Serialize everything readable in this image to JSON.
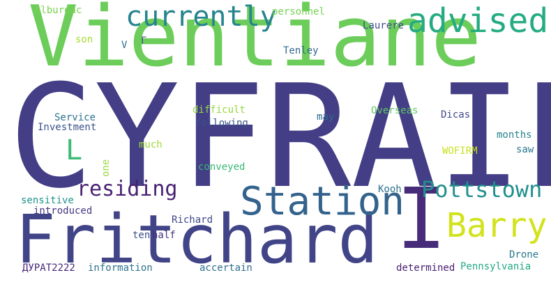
{
  "words": [
    {
      "text": "CYFRAIL",
      "color": "#433e85"
    },
    {
      "text": "Vientiane",
      "color": "#6ccd5a"
    },
    {
      "text": "Fritchard",
      "color": "#414487"
    },
    {
      "text": "I",
      "color": "#472c7a"
    },
    {
      "text": "advised",
      "color": "#25ab82"
    },
    {
      "text": "currently",
      "color": "#25848e"
    },
    {
      "text": "Station",
      "color": "#33638d"
    },
    {
      "text": "Barry",
      "color": "#d2e21b"
    },
    {
      "text": "Pottstown",
      "color": "#218f8d"
    },
    {
      "text": "residing",
      "color": "#482173"
    },
    {
      "text": "L",
      "color": "#3cbb75"
    },
    {
      "text": "Alburdac",
      "color": "#7ad151"
    },
    {
      "text": "personnel",
      "color": "#75d054"
    },
    {
      "text": "son",
      "color": "#a8db34"
    },
    {
      "text": "V",
      "color": "#2e6e8e"
    },
    {
      "text": "Г",
      "color": "#3b528b"
    },
    {
      "text": "Laurere",
      "color": "#3e4c8a"
    },
    {
      "text": "Tenley",
      "color": "#31688e"
    },
    {
      "text": "Service",
      "color": "#2c728e"
    },
    {
      "text": "Investment",
      "color": "#3a538b"
    },
    {
      "text": "difficult",
      "color": "#95d840"
    },
    {
      "text": "following",
      "color": "#3b528b"
    },
    {
      "text": "may",
      "color": "#2f6c8e"
    },
    {
      "text": "Overseas",
      "color": "#5ec962"
    },
    {
      "text": "Dicas",
      "color": "#3e4a89"
    },
    {
      "text": "months",
      "color": "#26828e"
    },
    {
      "text": "much",
      "color": "#a0da39"
    },
    {
      "text": "WOFIRM",
      "color": "#cae11f"
    },
    {
      "text": "saw",
      "color": "#2a768e"
    },
    {
      "text": "one",
      "color": "#9dd93b"
    },
    {
      "text": "conveyed",
      "color": "#38b977"
    },
    {
      "text": "Kooh",
      "color": "#2d708e"
    },
    {
      "text": "sensitive",
      "color": "#20928c"
    },
    {
      "text": "introduced",
      "color": "#453781"
    },
    {
      "text": "Richard",
      "color": "#3f4788"
    },
    {
      "text": "ten",
      "color": "#3c4f8a"
    },
    {
      "text": "half",
      "color": "#46327e"
    },
    {
      "text": "Drone",
      "color": "#2a778e"
    },
    {
      "text": "ДУРАТ2222",
      "color": "#482878"
    },
    {
      "text": "information",
      "color": "#2d718e"
    },
    {
      "text": "accertain",
      "color": "#2e6f8e"
    },
    {
      "text": "determined",
      "color": "#481d6f"
    },
    {
      "text": "Pennsylvania",
      "color": "#22a884"
    }
  ]
}
